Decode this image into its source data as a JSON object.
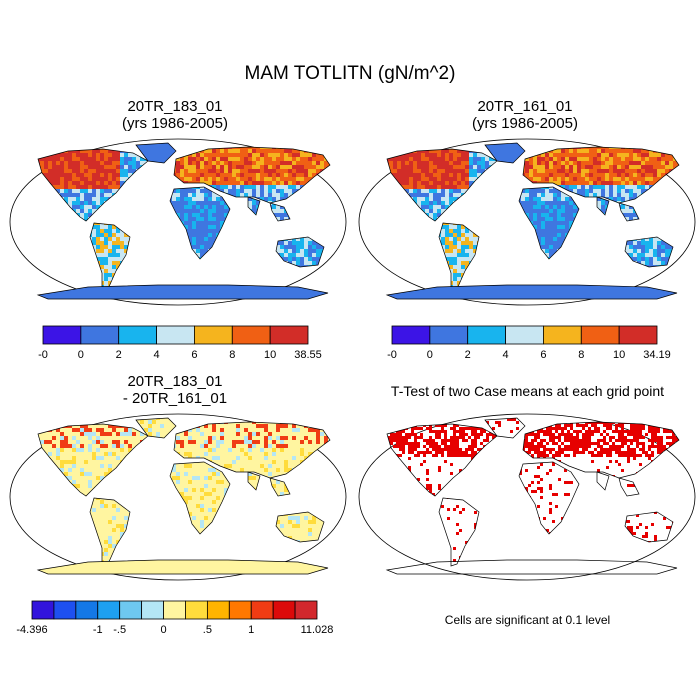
{
  "title": "MAM TOTLITN (gN/m^2)",
  "panels": {
    "top_left": {
      "case": "20TR_183_01",
      "years": "(yrs 1986-2005)",
      "colorbar": {
        "colors": [
          "#3c14e6",
          "#3f76e0",
          "#18b4ee",
          "#c8e6f2",
          "#f5b41e",
          "#f06014",
          "#d22d28"
        ],
        "labels": [
          "-0",
          "0",
          "2",
          "4",
          "6",
          "8",
          "10",
          "38.55"
        ]
      }
    },
    "top_right": {
      "case": "20TR_161_01",
      "years": "(yrs 1986-2005)",
      "colorbar": {
        "colors": [
          "#3c14e6",
          "#3f76e0",
          "#18b4ee",
          "#c8e6f2",
          "#f5b41e",
          "#f06014",
          "#d22d28"
        ],
        "labels": [
          "-0",
          "0",
          "2",
          "4",
          "6",
          "8",
          "10",
          "34.19"
        ]
      }
    },
    "bottom_left": {
      "line1": "20TR_183_01",
      "line2": "- 20TR_161_01",
      "colorbar": {
        "colors": [
          "#3214dc",
          "#1e50f0",
          "#1478e6",
          "#1ea0f0",
          "#6ec8f0",
          "#b4e6f5",
          "#fff5a0",
          "#ffdc3c",
          "#ffb400",
          "#ff7800",
          "#f03c14",
          "#dc0a0a",
          "#d2282d"
        ],
        "labels": [
          {
            "text": "-4.396",
            "edge": 0
          },
          {
            "text": "-1",
            "edge": 3
          },
          {
            "text": "-.5",
            "edge": 4
          },
          {
            "text": "0",
            "edge": 6
          },
          {
            "text": ".5",
            "edge": 8
          },
          {
            "text": "1",
            "edge": 10
          },
          {
            "text": "11.028",
            "edge": 13
          }
        ]
      }
    },
    "bottom_right": {
      "title": "T-Test of two Case means at each grid point",
      "note": "Cells are significant at 0.1 level"
    }
  }
}
